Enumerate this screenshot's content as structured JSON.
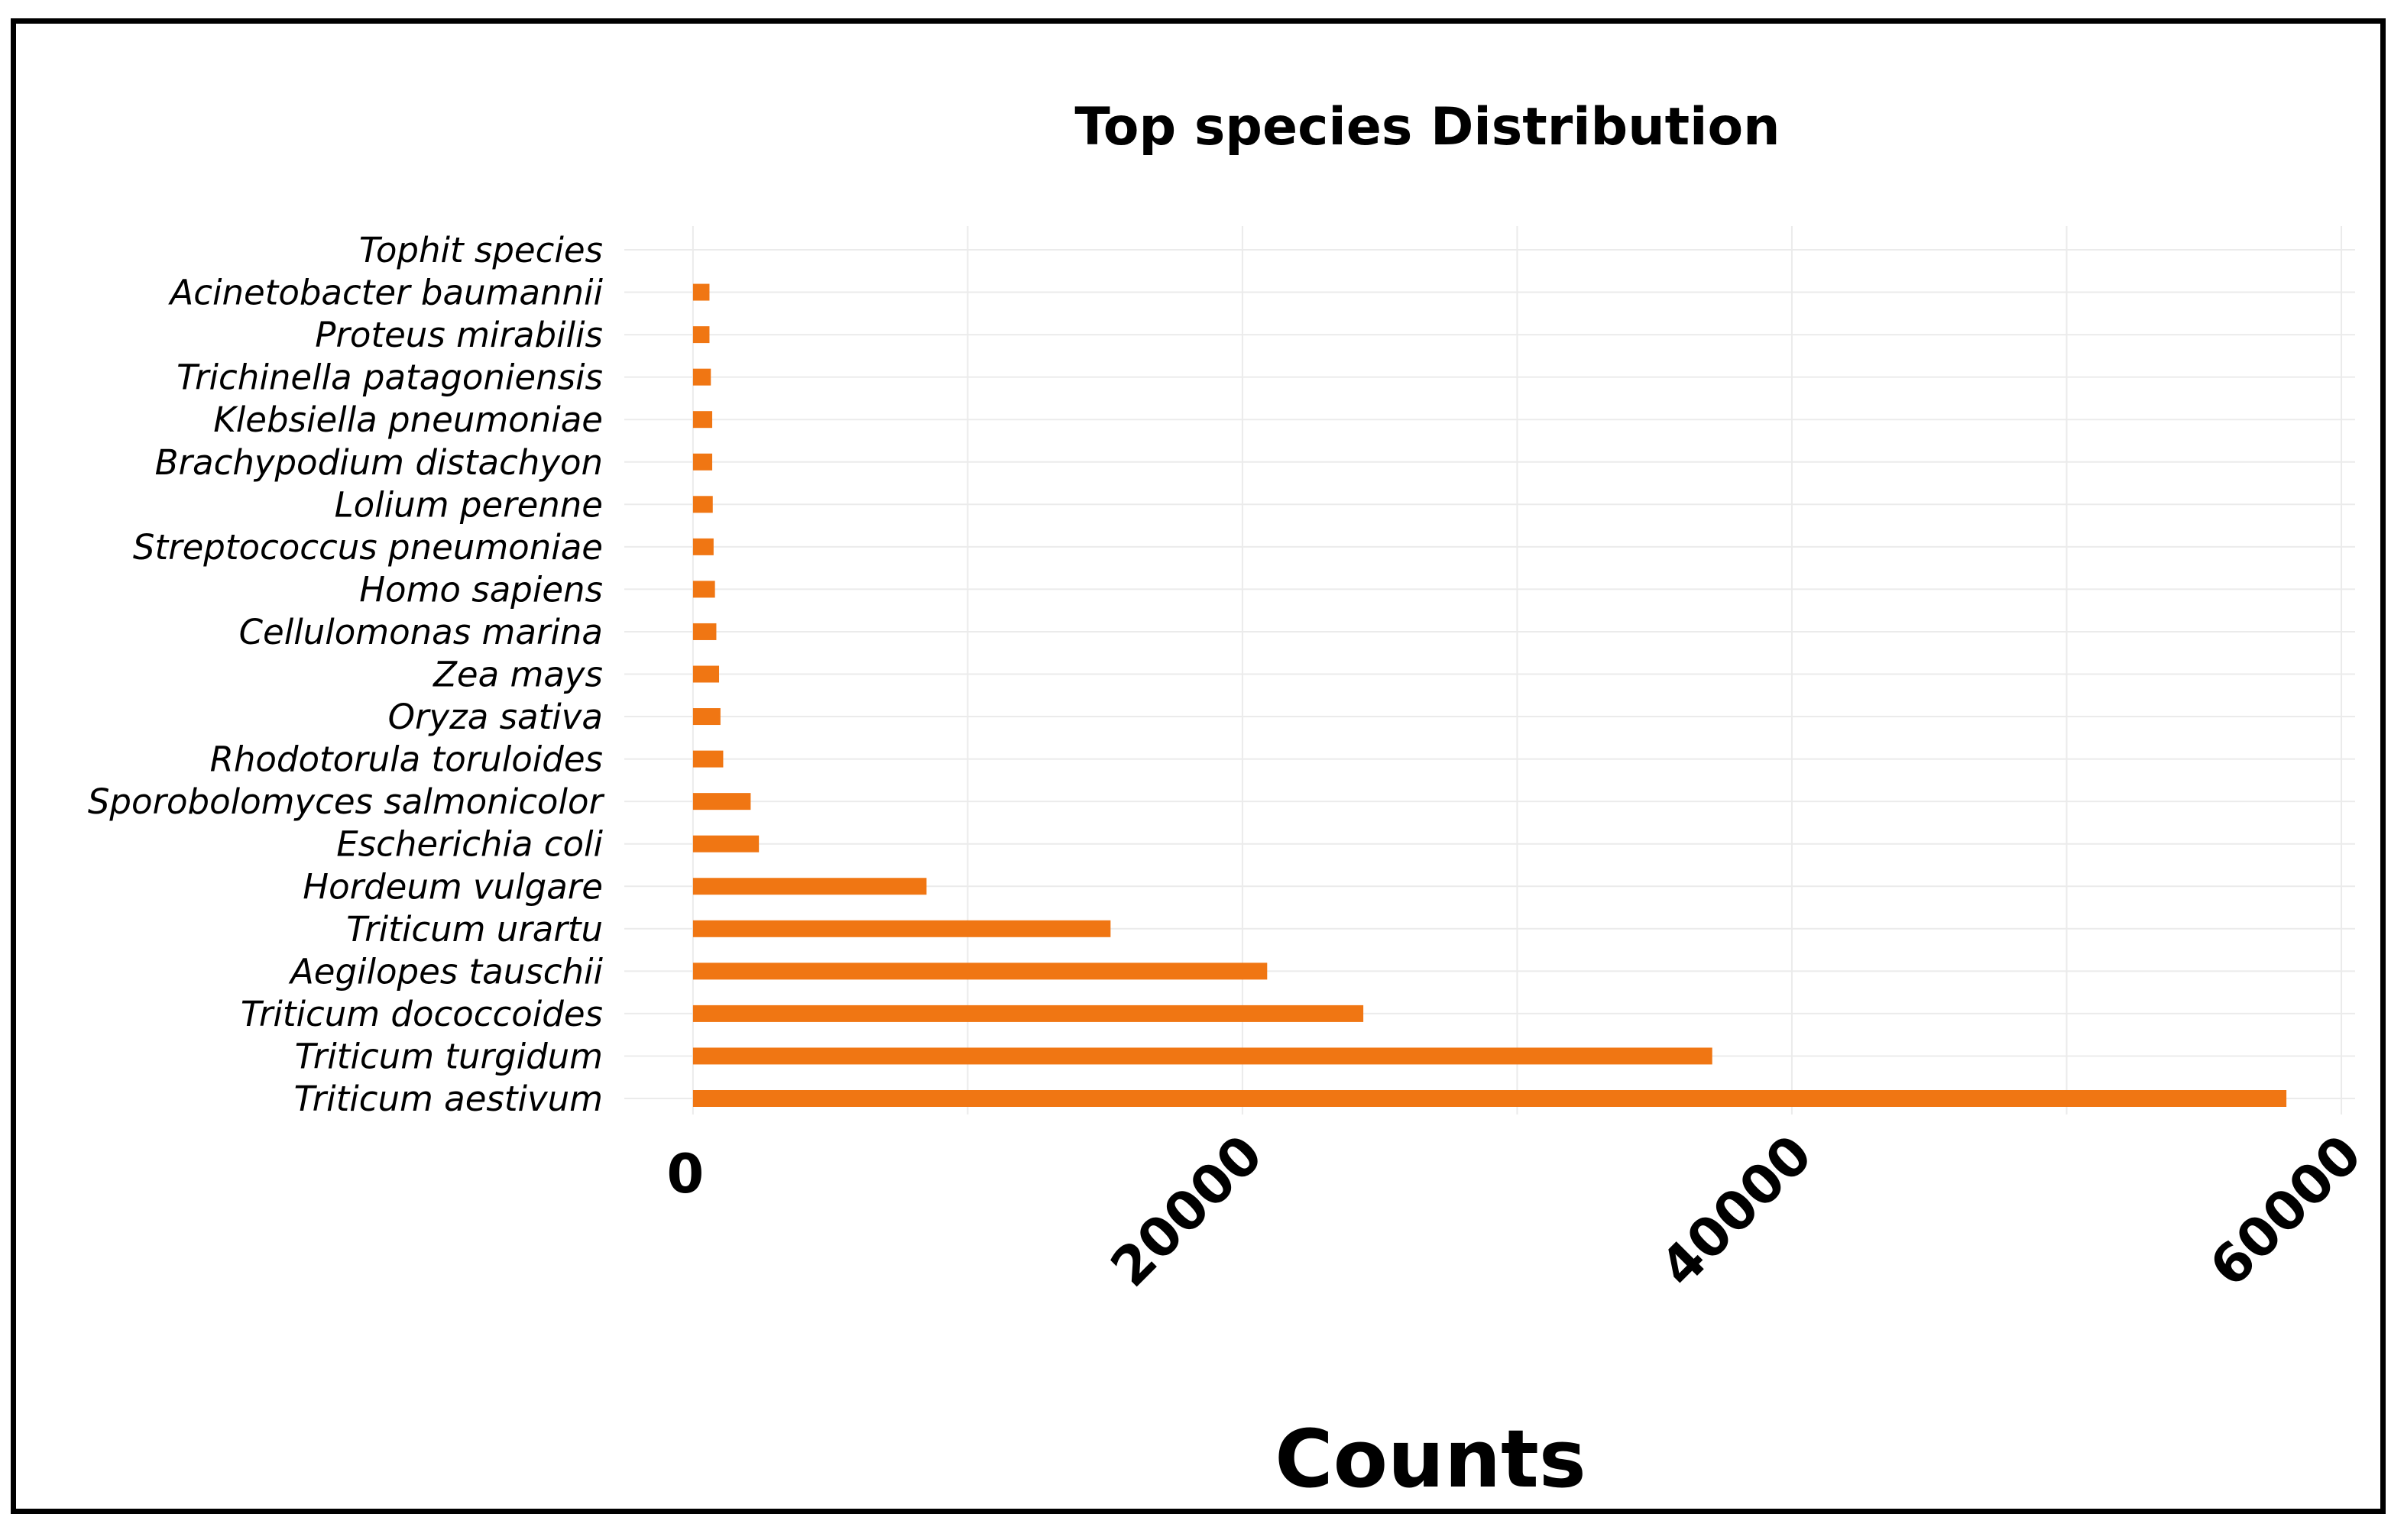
{
  "chart_data": {
    "type": "bar",
    "orientation": "horizontal",
    "title": "Top species Distribution",
    "xlabel": "Counts",
    "ylabel": "",
    "category_header": "Tophit species",
    "categories": [
      "Triticum aestivum",
      "Triticum turgidum",
      "Triticum dococcoides",
      "Aegilopes tauschii",
      "Triticum urartu",
      "Hordeum vulgare",
      "Escherichia coli",
      "Sporobolomyces salmonicolor",
      "Rhodotorula toruloides",
      "Oryza sativa",
      "Zea mays",
      "Cellulomonas marina",
      "Homo sapiens",
      "Streptococcus pneumoniae",
      "Lolium perenne",
      "Brachypodium distachyon",
      "Klebsiella pneumoniae",
      "Trichinella patagoniensis",
      "Proteus mirabilis",
      "Acinetobacter baumannii"
    ],
    "values": [
      58000,
      37100,
      24400,
      20900,
      15200,
      8500,
      2400,
      2100,
      1100,
      1000,
      950,
      850,
      800,
      750,
      720,
      700,
      700,
      650,
      600,
      600
    ],
    "xlim": [
      -2500,
      60500
    ],
    "xticks": [
      0,
      20000,
      40000,
      60000
    ],
    "xtick_labels": [
      "0",
      "20000",
      "40000",
      "60000"
    ],
    "grid": true,
    "bar_color": "#f07613",
    "grid_color": "#ebebeb"
  }
}
